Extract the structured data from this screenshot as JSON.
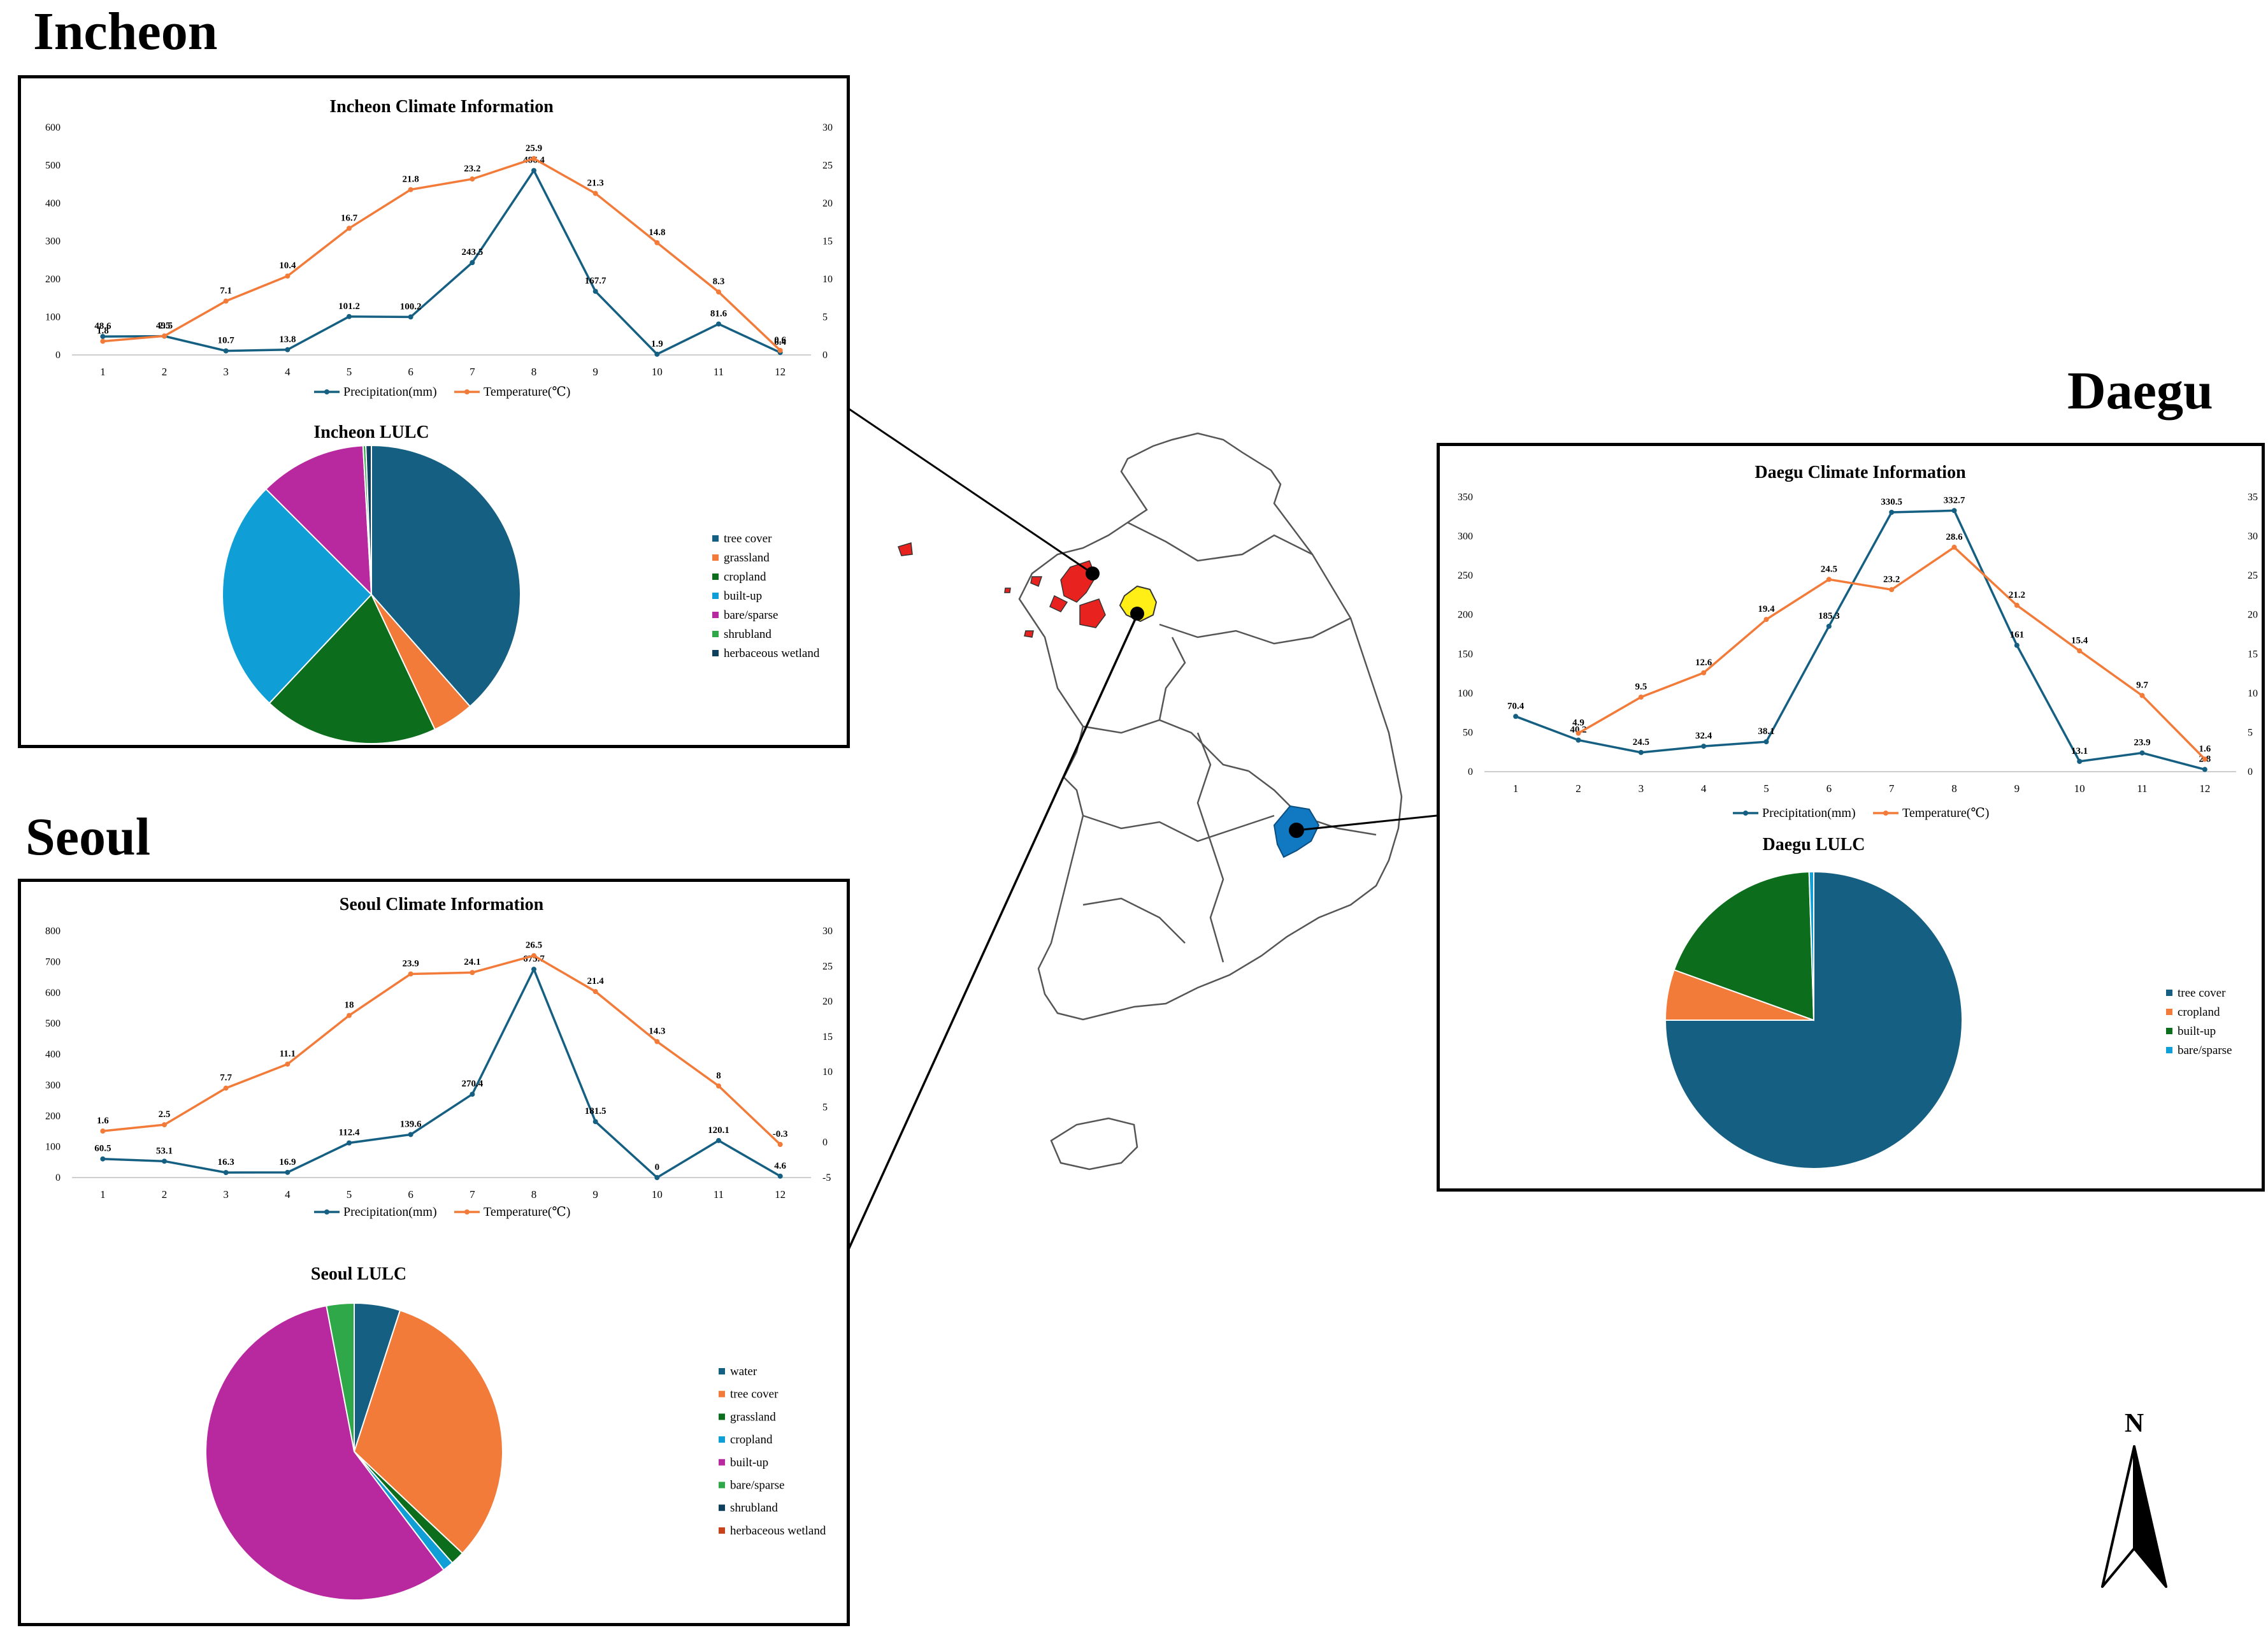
{
  "cities": {
    "incheon": {
      "name": "Incheon"
    },
    "seoul": {
      "name": "Seoul"
    },
    "daegu": {
      "name": "Daegu"
    }
  },
  "compass": {
    "label": "N"
  },
  "chart_data": [
    {
      "id": "incheon_climate",
      "type": "line",
      "title": "Incheon Climate Information",
      "categories": [
        "1",
        "2",
        "3",
        "4",
        "5",
        "6",
        "7",
        "8",
        "9",
        "10",
        "11",
        "12"
      ],
      "ylim_left": [
        0,
        600
      ],
      "yticks_left": [
        0,
        100,
        200,
        300,
        400,
        500,
        600
      ],
      "ylim_right": [
        0,
        30
      ],
      "yticks_right": [
        0,
        5,
        10,
        15,
        20,
        25,
        30
      ],
      "series": [
        {
          "name": "Precipitation(mm)",
          "axis": "left",
          "color": "#156082",
          "values": [
            48.6,
            49.5,
            10.7,
            13.8,
            101.2,
            100.2,
            243.5,
            486.4,
            167.7,
            1.9,
            81.6,
            6.4
          ]
        },
        {
          "name": "Temperature(℃)",
          "axis": "right",
          "color": "#f27b3a",
          "values": [
            1.8,
            2.5,
            7.1,
            10.4,
            16.7,
            21.8,
            23.2,
            25.9,
            21.3,
            14.8,
            8.3,
            0.6
          ]
        }
      ],
      "legend": "bottom"
    },
    {
      "id": "incheon_lulc",
      "type": "pie",
      "title": "Incheon LULC",
      "labels": [
        "tree cover",
        "grassland",
        "cropland",
        "built-up",
        "bare/sparse",
        "shrubland",
        "herbaceous wetland"
      ],
      "values": [
        38.5,
        4.5,
        19.0,
        25.5,
        11.6,
        0.3,
        0.6
      ],
      "colors": [
        "#156082",
        "#f27b3a",
        "#0c6e1c",
        "#0f9ed5",
        "#b8289e",
        "#2fa84a",
        "#0e3f5c"
      ],
      "legend": "right"
    },
    {
      "id": "seoul_climate",
      "type": "line",
      "title": "Seoul Climate Information",
      "categories": [
        "1",
        "2",
        "3",
        "4",
        "5",
        "6",
        "7",
        "8",
        "9",
        "10",
        "11",
        "12"
      ],
      "ylim_left": [
        0,
        800
      ],
      "yticks_left": [
        0,
        100,
        200,
        300,
        400,
        500,
        600,
        700,
        800
      ],
      "ylim_right": [
        -5,
        30
      ],
      "yticks_right": [
        -5,
        0,
        5,
        10,
        15,
        20,
        25,
        30
      ],
      "series": [
        {
          "name": "Precipitation(mm)",
          "axis": "left",
          "color": "#156082",
          "values": [
            60.5,
            53.1,
            16.3,
            16.9,
            112.4,
            139.6,
            270.4,
            675.7,
            181.5,
            0,
            120.1,
            4.6
          ]
        },
        {
          "name": "Temperature(℃)",
          "axis": "right",
          "color": "#f27b3a",
          "values": [
            1.6,
            2.5,
            7.7,
            11.1,
            18,
            23.9,
            24.1,
            26.5,
            21.4,
            14.3,
            8,
            -0.3
          ]
        }
      ],
      "legend": "bottom"
    },
    {
      "id": "seoul_lulc",
      "type": "pie",
      "title": "Seoul LULC",
      "labels": [
        "water",
        "tree cover",
        "grassland",
        "cropland",
        "built-up",
        "bare/sparse",
        "shrubland",
        "herbaceous wetland"
      ],
      "values": [
        5.0,
        32.0,
        1.5,
        1.2,
        57.3,
        3.0,
        0.0,
        0.0
      ],
      "colors": [
        "#156082",
        "#f27b3a",
        "#0c6e1c",
        "#0f9ed5",
        "#b8289e",
        "#2fa84a",
        "#0e3f5c",
        "#c7431b"
      ],
      "legend": "right"
    },
    {
      "id": "daegu_climate",
      "type": "line",
      "title": "Daegu Climate Information",
      "categories": [
        "1",
        "2",
        "3",
        "4",
        "5",
        "6",
        "7",
        "8",
        "9",
        "10",
        "11",
        "12"
      ],
      "ylim_left": [
        0,
        350
      ],
      "yticks_left": [
        0,
        50,
        100,
        150,
        200,
        250,
        300,
        350
      ],
      "ylim_right": [
        0,
        35
      ],
      "yticks_right": [
        0,
        5,
        10,
        15,
        20,
        25,
        30,
        35
      ],
      "series": [
        {
          "name": "Precipitation(mm)",
          "axis": "left",
          "color": "#156082",
          "values": [
            70.4,
            40.2,
            24.5,
            32.4,
            38.1,
            185.3,
            330.5,
            332.7,
            161,
            13.1,
            23.9,
            2.8
          ]
        },
        {
          "name": "Temperature(℃)",
          "axis": "right",
          "color": "#f27b3a",
          "values": [
            null,
            4.9,
            9.5,
            12.6,
            19.4,
            24.5,
            23.2,
            28.6,
            21.2,
            15.4,
            9.7,
            1.6
          ]
        }
      ],
      "legend": "bottom"
    },
    {
      "id": "daegu_lulc",
      "type": "pie",
      "title": "Daegu LULC",
      "labels": [
        "tree cover",
        "cropland",
        "built-up",
        "bare/sparse"
      ],
      "values": [
        75.0,
        5.5,
        19.0,
        0.5
      ],
      "colors": [
        "#156082",
        "#f27b3a",
        "#0c6e1c",
        "#0f9ed5"
      ],
      "legend": "right"
    }
  ]
}
